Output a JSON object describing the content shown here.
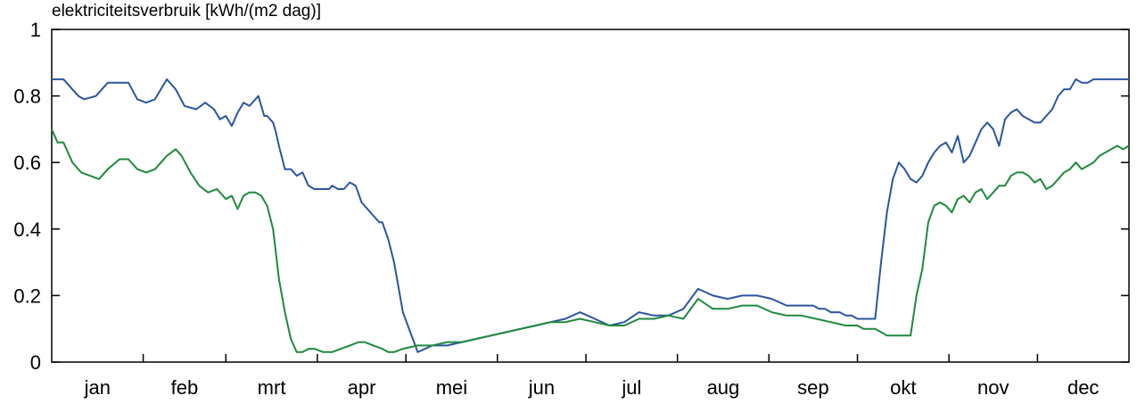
{
  "chart_data": {
    "type": "line",
    "title": "elektriciteitsverbruik [kWh/(m2 dag)]",
    "xlabel": "",
    "ylabel": "",
    "ylim": [
      0,
      1
    ],
    "xlim": [
      1,
      366
    ],
    "grid": false,
    "legend": "none",
    "yticks": [
      "0",
      "0.2",
      "0.4",
      "0.6",
      "0.8",
      "1"
    ],
    "months": [
      "jan",
      "feb",
      "mrt",
      "apr",
      "mei",
      "jun",
      "jul",
      "aug",
      "sep",
      "okt",
      "nov",
      "dec"
    ],
    "series": [
      {
        "color": "#2a56a0",
        "x": [
          1,
          5,
          10,
          12,
          16,
          20,
          24,
          27,
          30,
          33,
          36,
          40,
          43,
          46,
          50,
          53,
          56,
          58,
          60,
          62,
          64,
          66,
          68,
          69,
          71,
          73,
          74,
          76,
          77,
          78,
          80,
          82,
          84,
          86,
          88,
          90,
          92,
          95,
          96,
          98,
          100,
          102,
          104,
          106,
          108,
          110,
          112,
          113,
          115,
          117,
          120,
          125,
          130,
          135,
          140,
          145,
          150,
          155,
          160,
          165,
          170,
          175,
          180,
          185,
          190,
          195,
          200,
          205,
          210,
          215,
          220,
          225,
          230,
          235,
          240,
          245,
          250,
          255,
          259,
          261,
          263,
          265,
          267,
          268,
          270,
          272,
          274,
          276,
          278,
          280,
          282,
          284,
          286,
          288,
          290,
          292,
          294,
          296,
          298,
          300,
          302,
          304,
          306,
          308,
          310,
          312,
          314,
          316,
          318,
          320,
          322,
          324,
          326,
          328,
          330,
          332,
          334,
          336,
          338,
          340,
          342,
          344,
          346,
          348,
          350,
          352,
          354,
          356,
          358,
          360,
          362,
          364,
          366
        ],
        "y": [
          0.85,
          0.85,
          0.8,
          0.79,
          0.8,
          0.84,
          0.84,
          0.84,
          0.79,
          0.78,
          0.79,
          0.85,
          0.82,
          0.77,
          0.76,
          0.78,
          0.76,
          0.73,
          0.74,
          0.71,
          0.75,
          0.78,
          0.77,
          0.78,
          0.8,
          0.74,
          0.74,
          0.72,
          0.69,
          0.65,
          0.58,
          0.58,
          0.56,
          0.57,
          0.53,
          0.52,
          0.52,
          0.52,
          0.53,
          0.52,
          0.52,
          0.54,
          0.53,
          0.48,
          0.46,
          0.44,
          0.42,
          0.42,
          0.37,
          0.3,
          0.15,
          0.03,
          0.05,
          0.05,
          0.06,
          0.07,
          0.08,
          0.09,
          0.1,
          0.11,
          0.12,
          0.13,
          0.15,
          0.13,
          0.11,
          0.12,
          0.15,
          0.14,
          0.14,
          0.16,
          0.22,
          0.2,
          0.19,
          0.2,
          0.2,
          0.19,
          0.17,
          0.17,
          0.17,
          0.16,
          0.16,
          0.15,
          0.15,
          0.15,
          0.14,
          0.14,
          0.13,
          0.13,
          0.13,
          0.13,
          0.3,
          0.45,
          0.55,
          0.6,
          0.58,
          0.55,
          0.54,
          0.56,
          0.6,
          0.63,
          0.65,
          0.66,
          0.63,
          0.68,
          0.6,
          0.62,
          0.66,
          0.7,
          0.72,
          0.7,
          0.65,
          0.73,
          0.75,
          0.76,
          0.74,
          0.73,
          0.72,
          0.72,
          0.74,
          0.76,
          0.8,
          0.82,
          0.82,
          0.85,
          0.84,
          0.84,
          0.85,
          0.85,
          0.85,
          0.85,
          0.85,
          0.85,
          0.85
        ]
      },
      {
        "color": "#1e8a3c",
        "x": [
          1,
          3,
          5,
          8,
          11,
          14,
          17,
          20,
          24,
          27,
          30,
          33,
          36,
          40,
          43,
          45,
          48,
          51,
          54,
          57,
          60,
          62,
          64,
          66,
          68,
          70,
          72,
          74,
          76,
          78,
          80,
          82,
          84,
          86,
          88,
          90,
          93,
          96,
          99,
          102,
          105,
          107,
          110,
          113,
          115,
          117,
          120,
          125,
          130,
          135,
          140,
          145,
          150,
          155,
          160,
          165,
          170,
          175,
          180,
          185,
          190,
          195,
          200,
          205,
          210,
          215,
          220,
          225,
          230,
          235,
          240,
          245,
          250,
          255,
          260,
          265,
          270,
          272,
          274,
          276,
          278,
          280,
          282,
          284,
          286,
          288,
          290,
          292,
          294,
          296,
          298,
          300,
          302,
          304,
          306,
          308,
          310,
          312,
          314,
          316,
          318,
          320,
          322,
          324,
          326,
          328,
          330,
          332,
          334,
          336,
          338,
          340,
          342,
          344,
          346,
          348,
          350,
          352,
          354,
          356,
          358,
          360,
          362,
          364,
          366
        ],
        "y": [
          0.7,
          0.66,
          0.66,
          0.6,
          0.57,
          0.56,
          0.55,
          0.58,
          0.61,
          0.61,
          0.58,
          0.57,
          0.58,
          0.62,
          0.64,
          0.62,
          0.57,
          0.53,
          0.51,
          0.52,
          0.49,
          0.5,
          0.46,
          0.5,
          0.51,
          0.51,
          0.5,
          0.47,
          0.4,
          0.25,
          0.15,
          0.07,
          0.03,
          0.03,
          0.04,
          0.04,
          0.03,
          0.03,
          0.04,
          0.05,
          0.06,
          0.06,
          0.05,
          0.04,
          0.03,
          0.03,
          0.04,
          0.05,
          0.05,
          0.06,
          0.06,
          0.07,
          0.08,
          0.09,
          0.1,
          0.11,
          0.12,
          0.12,
          0.13,
          0.12,
          0.11,
          0.11,
          0.13,
          0.13,
          0.14,
          0.13,
          0.19,
          0.16,
          0.16,
          0.17,
          0.17,
          0.15,
          0.14,
          0.14,
          0.13,
          0.12,
          0.11,
          0.11,
          0.11,
          0.1,
          0.1,
          0.1,
          0.09,
          0.08,
          0.08,
          0.08,
          0.08,
          0.08,
          0.2,
          0.28,
          0.42,
          0.47,
          0.48,
          0.47,
          0.45,
          0.49,
          0.5,
          0.48,
          0.51,
          0.52,
          0.49,
          0.51,
          0.53,
          0.53,
          0.56,
          0.57,
          0.57,
          0.56,
          0.54,
          0.55,
          0.52,
          0.53,
          0.55,
          0.57,
          0.58,
          0.6,
          0.58,
          0.59,
          0.6,
          0.62,
          0.63,
          0.64,
          0.65,
          0.64,
          0.65
        ]
      }
    ]
  }
}
